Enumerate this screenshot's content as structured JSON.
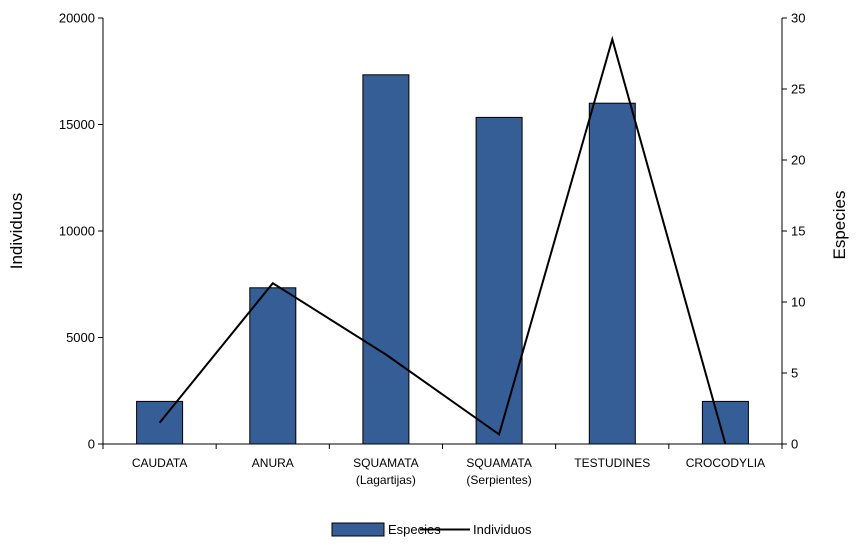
{
  "chart_data": {
    "type": "bar+line",
    "categories": [
      [
        "CAUDATA"
      ],
      [
        "ANURA"
      ],
      [
        "SQUAMATA",
        "(Lagartijas)"
      ],
      [
        "SQUAMATA",
        "(Serpientes)"
      ],
      [
        "TESTUDINES"
      ],
      [
        "CROCODYLIA"
      ]
    ],
    "series": [
      {
        "name": "Especies",
        "type": "bar",
        "axis": "right",
        "color": "#355E96",
        "values": [
          3,
          11,
          26,
          23,
          24,
          3
        ]
      },
      {
        "name": "Individuos",
        "type": "line",
        "axis": "left",
        "color": "#000000",
        "values": [
          1000,
          7550,
          4200,
          450,
          19000,
          0
        ]
      }
    ],
    "y_left": {
      "label": "Individuos",
      "min": 0,
      "max": 20000,
      "ticks": [
        "0",
        "5000",
        "10000",
        "15000",
        "20000"
      ]
    },
    "y_right": {
      "label": "Especies",
      "min": 0,
      "max": 30,
      "ticks": [
        "0",
        "5",
        "10",
        "15",
        "20",
        "25",
        "30"
      ]
    },
    "legend": {
      "position": "bottom",
      "items": [
        "Especies",
        "Individuos"
      ]
    },
    "grid": false
  }
}
